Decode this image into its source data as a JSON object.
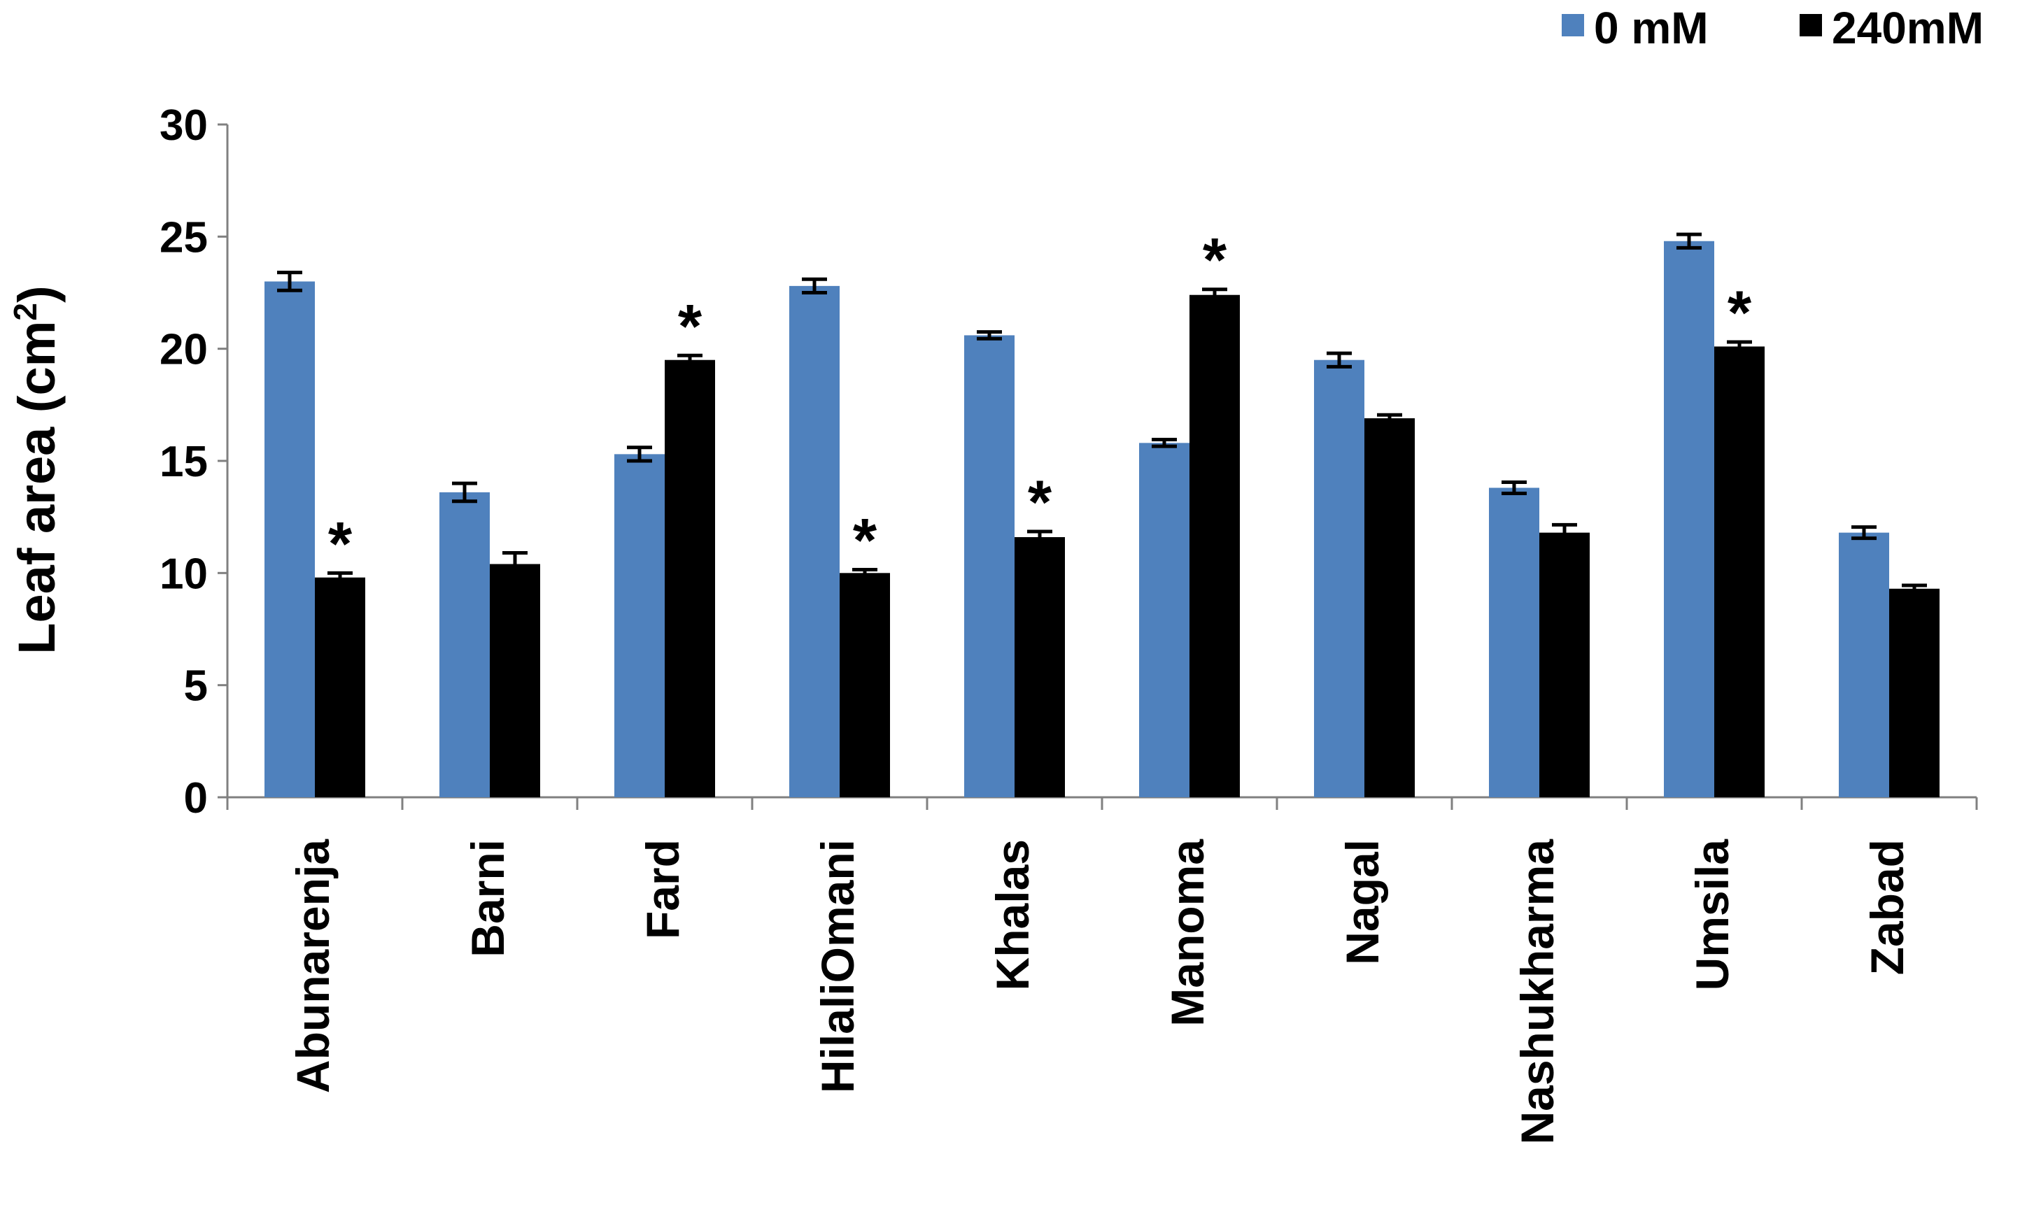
{
  "chart_data": {
    "type": "bar",
    "title": "",
    "xlabel": "",
    "ylabel": "Leaf area (cm",
    "ylabel_sup": "2",
    "ylabel_close": ")",
    "ylim": [
      0,
      30
    ],
    "yticks": [
      0,
      5,
      10,
      15,
      20,
      25,
      30
    ],
    "grid": false,
    "legend_position": "top-right",
    "categories": [
      "Abunarenja",
      "Barni",
      "Fard",
      "HilaliOmani",
      "Khalas",
      "Manoma",
      "Nagal",
      "Nashukharma",
      "Umsila",
      "Zabad"
    ],
    "series": [
      {
        "name": "0 mM",
        "color": "#4F81BD",
        "values": [
          23.0,
          13.6,
          15.3,
          22.8,
          20.6,
          15.8,
          19.5,
          13.8,
          24.8,
          11.8
        ],
        "errors": [
          0.4,
          0.4,
          0.3,
          0.3,
          0.15,
          0.15,
          0.3,
          0.25,
          0.3,
          0.25
        ]
      },
      {
        "name": "240mM",
        "color": "#000000",
        "values": [
          9.8,
          10.4,
          19.5,
          10.0,
          11.6,
          22.4,
          16.9,
          11.8,
          20.1,
          9.3
        ],
        "errors": [
          0.2,
          0.5,
          0.2,
          0.15,
          0.25,
          0.25,
          0.15,
          0.35,
          0.2,
          0.15
        ]
      }
    ],
    "annotations": {
      "symbol": "*",
      "marked": [
        {
          "category": "Abunarenja",
          "series": "240mM"
        },
        {
          "category": "Fard",
          "series": "240mM"
        },
        {
          "category": "HilaliOmani",
          "series": "240mM"
        },
        {
          "category": "Khalas",
          "series": "240mM"
        },
        {
          "category": "Manoma",
          "series": "240mM"
        },
        {
          "category": "Umsila",
          "series": "240mM"
        }
      ]
    }
  }
}
